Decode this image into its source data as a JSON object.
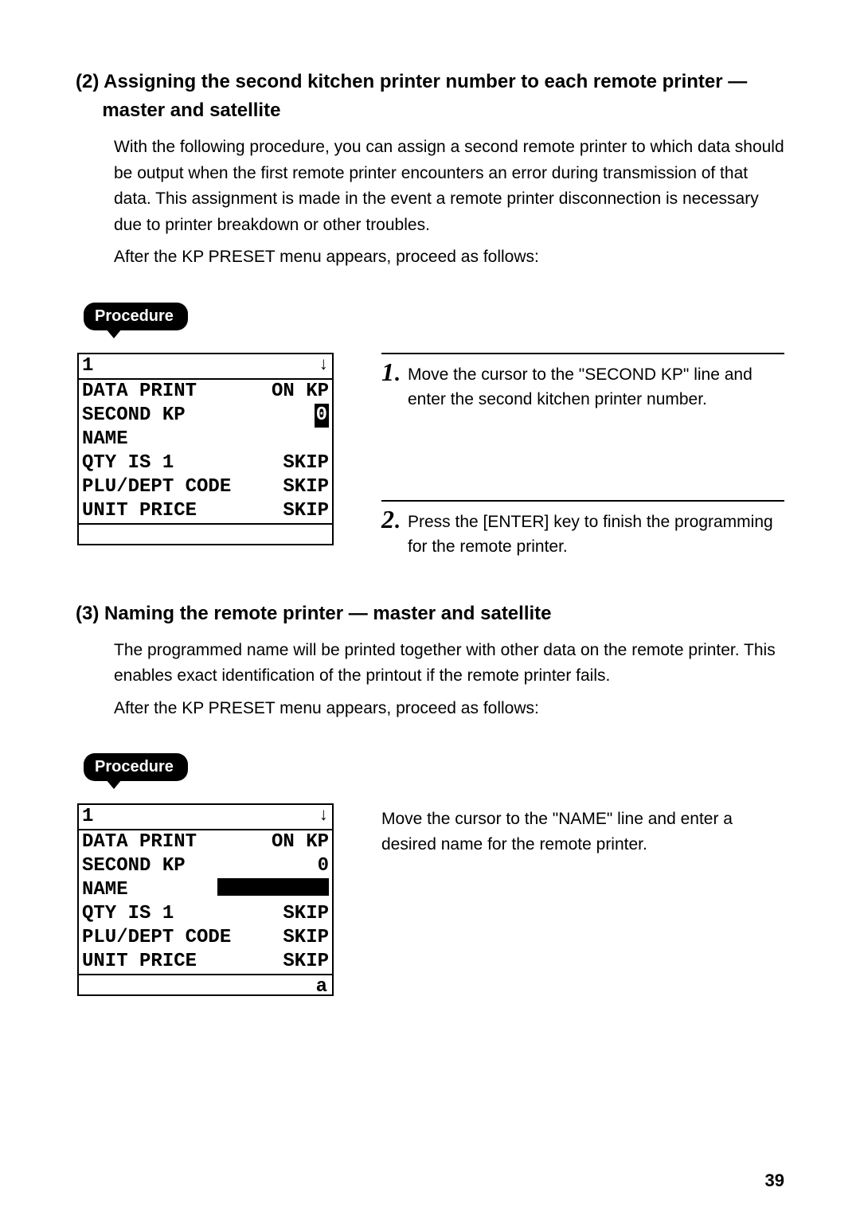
{
  "section2": {
    "num": "(2)",
    "title_line1": "Assigning the second kitchen printer number to each remote printer —",
    "title_line2": "master and satellite",
    "para1": "With the following procedure, you can assign a second remote printer to which data should be output when the first remote printer encounters an error during transmission of that data. This assignment is made in the event a remote printer disconnection is necessary due to printer breakdown or other troubles.",
    "para2": "After the KP PRESET menu appears, proceed as follows:"
  },
  "procedure_label": "Procedure",
  "screen1": {
    "top_left": "1",
    "arrow": "↓",
    "rows": [
      {
        "l": "DATA PRINT",
        "r": "ON KP",
        "hl": false
      },
      {
        "l": "SECOND KP",
        "r": "0",
        "hl": true
      },
      {
        "l": "NAME",
        "r": "",
        "hl": false
      },
      {
        "l": "QTY IS 1",
        "r": "SKIP",
        "hl": false
      },
      {
        "l": "PLU/DEPT CODE",
        "r": "SKIP",
        "hl": false
      },
      {
        "l": "UNIT PRICE",
        "r": "SKIP",
        "hl": false
      }
    ],
    "bottom": ""
  },
  "steps1": [
    {
      "n": "1",
      "t": "Move the cursor to the \"SECOND KP\" line and enter the second kitchen printer number."
    },
    {
      "n": "2",
      "t": "Press the [ENTER] key to finish the programming for the remote printer."
    }
  ],
  "section3": {
    "num": "(3)",
    "title": "Naming the remote printer — master and satellite",
    "para1": "The programmed name will be printed together with other data on the remote printer. This enables exact identification of the printout if the remote printer fails.",
    "para2": "After the KP PRESET menu appears, proceed as follows:"
  },
  "screen2": {
    "top_left": "1",
    "arrow": "↓",
    "rows": [
      {
        "l": "DATA PRINT",
        "r": "ON KP"
      },
      {
        "l": "SECOND KP",
        "r": "0"
      },
      {
        "l": "NAME",
        "r": ""
      },
      {
        "l": "QTY IS 1",
        "r": "SKIP"
      },
      {
        "l": "PLU/DEPT CODE",
        "r": "SKIP"
      },
      {
        "l": "UNIT PRICE",
        "r": "SKIP"
      }
    ],
    "bottom": "a"
  },
  "righttext2": "Move the cursor to the \"NAME\" line and enter a desired name for the remote printer.",
  "page_number": "39"
}
